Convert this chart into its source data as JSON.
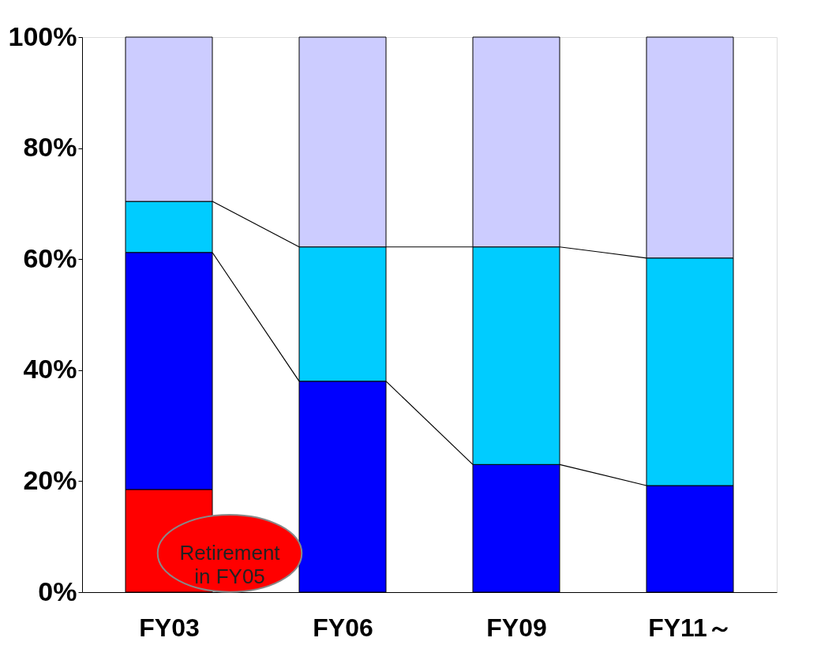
{
  "chart_data": {
    "type": "bar",
    "stacked": true,
    "categories": [
      "FY03",
      "FY06",
      "FY09",
      "FY11～"
    ],
    "series": [
      {
        "color": "#ff0000",
        "values": [
          18.5,
          0,
          0,
          0
        ]
      },
      {
        "color": "#0000ff",
        "values": [
          42.7,
          38.0,
          23.0,
          19.2
        ]
      },
      {
        "color": "#00ccff",
        "values": [
          9.2,
          24.2,
          39.2,
          41.0
        ]
      },
      {
        "color": "#ccccff",
        "values": [
          29.6,
          37.8,
          37.8,
          39.8
        ]
      }
    ],
    "ylim": [
      0,
      100
    ],
    "yticks": [
      {
        "value": 0,
        "label": "0%"
      },
      {
        "value": 20,
        "label": "20%"
      },
      {
        "value": 40,
        "label": "40%"
      },
      {
        "value": 60,
        "label": "60%"
      },
      {
        "value": 80,
        "label": "80%"
      },
      {
        "value": 100,
        "label": "100%"
      }
    ],
    "grid": false,
    "annotations": [
      "Retirement in FY05"
    ]
  }
}
